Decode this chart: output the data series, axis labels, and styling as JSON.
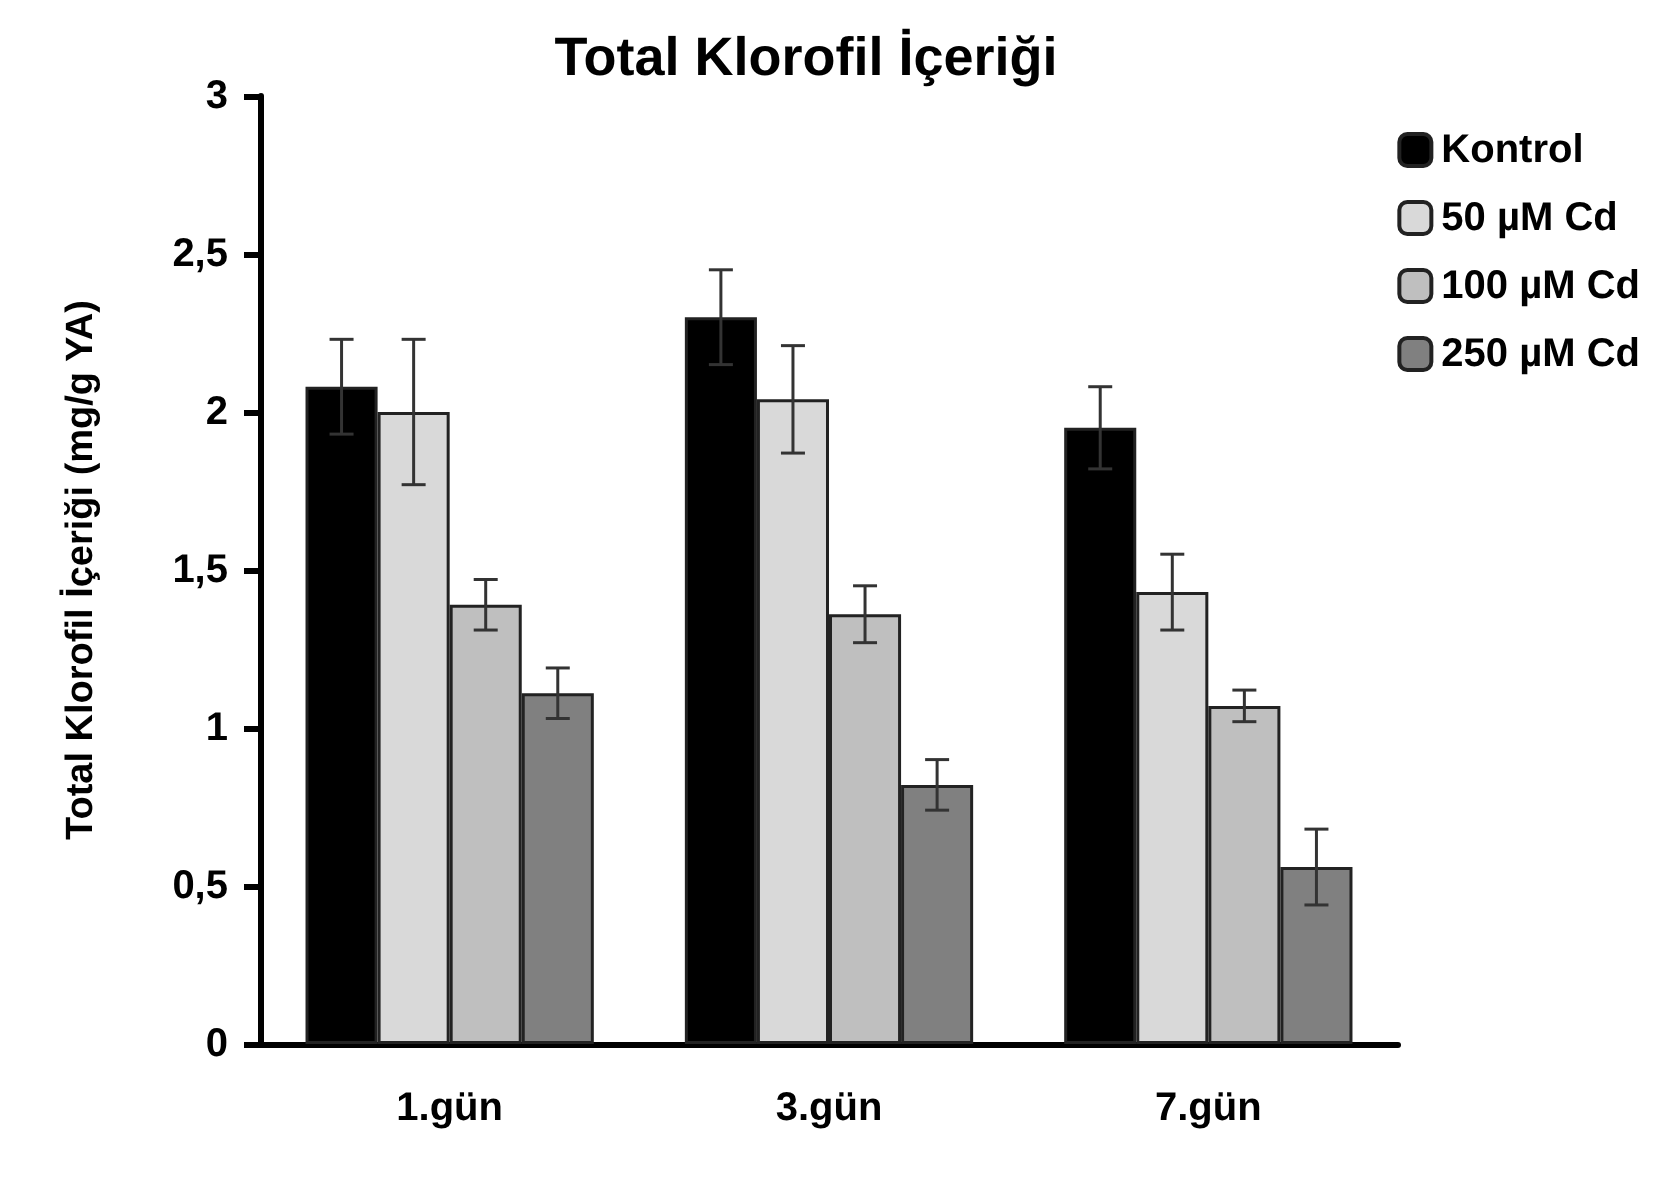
{
  "chart_data": {
    "type": "bar",
    "title": "Total Klorofil İçeriği",
    "ylabel": "Total Klorofil İçeriği (mg/g YA)",
    "categories": [
      "1.gün",
      "3.gün",
      "7.gün"
    ],
    "series": [
      {
        "name": "Kontrol",
        "color": "#000000",
        "values": [
          2.08,
          2.3,
          1.95
        ],
        "errors": [
          0.15,
          0.15,
          0.13
        ]
      },
      {
        "name": "50 µM Cd",
        "color": "#d9d9d9",
        "values": [
          2.0,
          2.04,
          1.43
        ],
        "errors": [
          0.23,
          0.17,
          0.12
        ]
      },
      {
        "name": "100 µM Cd",
        "color": "#bfbfbf",
        "values": [
          1.39,
          1.36,
          1.07
        ],
        "errors": [
          0.08,
          0.09,
          0.05
        ]
      },
      {
        "name": "250 µM Cd",
        "color": "#808080",
        "values": [
          1.11,
          0.82,
          0.56
        ],
        "errors": [
          0.08,
          0.08,
          0.12
        ]
      }
    ],
    "ylim": [
      0,
      3
    ],
    "yticks": [
      0,
      {
        "value": 0.5,
        "label": "0,5"
      },
      1,
      {
        "value": 1.5,
        "label": "1,5"
      },
      2,
      {
        "value": 2.5,
        "label": "2,5"
      },
      3
    ],
    "grid": false,
    "legend": "top right"
  }
}
